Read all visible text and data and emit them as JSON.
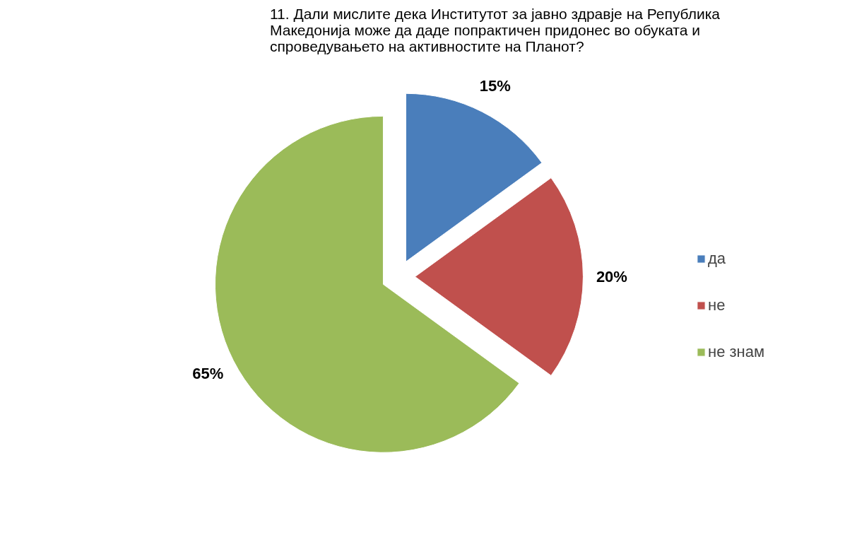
{
  "chart_data": {
    "type": "pie",
    "title": "11. Дали мислите дека Институтот за јавно здравје на Република\nМакедонија може да даде попрактичен придонес во обуката и\nспроведувањето на активностите на Планот?",
    "categories": [
      "да",
      "не",
      "не знам"
    ],
    "values": [
      15,
      20,
      65
    ],
    "value_labels": [
      "15%",
      "20%",
      "65%"
    ],
    "colors": [
      "#4a7ebb",
      "#c0504d",
      "#9bbb59"
    ],
    "legend": "right"
  }
}
